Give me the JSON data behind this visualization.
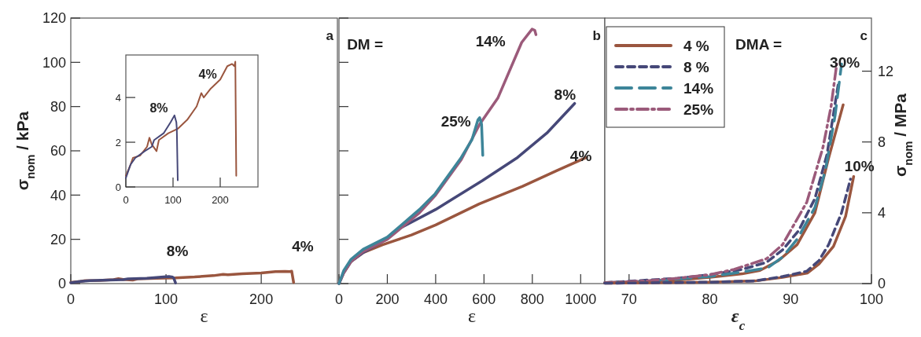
{
  "chart_data": [
    {
      "type": "line",
      "xlabel": "ε",
      "ylabel": "σ$_{nom}$  / kPa",
      "xlim": [
        0,
        280
      ],
      "ylim": [
        0,
        120
      ],
      "xticks": [
        0,
        100,
        200
      ],
      "yticks": [
        0,
        20,
        40,
        60,
        80,
        100,
        120
      ],
      "annotations": [
        "a",
        "8%",
        "4%"
      ],
      "series": [
        {
          "color": "#9a563f",
          "x": [
            0,
            10,
            15,
            30,
            45,
            50,
            55,
            65,
            70,
            90,
            110,
            130,
            150,
            160,
            165,
            180,
            200,
            215,
            225,
            230,
            232,
            234
          ],
          "values": [
            0.5,
            1.0,
            1.3,
            1.4,
            1.8,
            2.2,
            1.9,
            1.6,
            2.1,
            2.4,
            2.6,
            3.0,
            3.6,
            4.2,
            4.0,
            4.4,
            4.8,
            5.4,
            5.5,
            5.4,
            5.6,
            0.5
          ]
        },
        {
          "color": "#464878",
          "x": [
            0,
            10,
            20,
            40,
            55,
            60,
            80,
            95,
            103,
            107,
            108,
            110
          ],
          "values": [
            0.4,
            1.0,
            1.3,
            1.6,
            1.8,
            2.1,
            2.4,
            2.9,
            3.2,
            2.9,
            2.6,
            0.3
          ]
        }
      ]
    },
    {
      "type": "line",
      "xlim": [
        0,
        280
      ],
      "ylim": [
        0,
        5.9
      ],
      "xticks": [
        0,
        100,
        200
      ],
      "yticks": [
        0,
        2,
        4
      ],
      "annotations": [
        "8%",
        "4%"
      ],
      "series": [
        {
          "color": "#9a563f",
          "x": [
            0,
            10,
            15,
            30,
            45,
            50,
            55,
            65,
            70,
            90,
            110,
            130,
            150,
            160,
            165,
            180,
            200,
            215,
            225,
            230,
            232,
            234
          ],
          "values": [
            0.5,
            1.0,
            1.3,
            1.4,
            1.8,
            2.2,
            1.9,
            1.6,
            2.1,
            2.4,
            2.6,
            3.0,
            3.6,
            4.2,
            4.0,
            4.4,
            4.8,
            5.4,
            5.5,
            5.4,
            5.6,
            0.5
          ]
        },
        {
          "color": "#464878",
          "x": [
            0,
            10,
            20,
            40,
            55,
            60,
            80,
            95,
            103,
            107,
            108,
            110
          ],
          "values": [
            0.4,
            1.0,
            1.3,
            1.6,
            1.8,
            2.1,
            2.4,
            2.9,
            3.2,
            2.9,
            2.6,
            0.3
          ]
        }
      ]
    },
    {
      "type": "line",
      "xlabel": "ε",
      "xlim": [
        0,
        1100
      ],
      "ylim": [
        0,
        120
      ],
      "xticks": [
        0,
        200,
        400,
        600,
        800,
        1000
      ],
      "yticks": [
        0,
        20,
        40,
        60,
        80,
        100,
        120
      ],
      "tick_labels": "x",
      "annotations": [
        "b",
        "DM =",
        "14%",
        "8%",
        "25%",
        "4%"
      ],
      "series": [
        {
          "color": "#9a563f",
          "x": [
            0,
            20,
            50,
            100,
            180,
            300,
            400,
            580,
            760,
            900,
            1024
          ],
          "values": [
            0,
            5,
            10,
            14,
            17.5,
            22,
            26.5,
            36,
            44,
            51,
            57
          ]
        },
        {
          "color": "#464878",
          "x": [
            0,
            20,
            50,
            100,
            180,
            235,
            400,
            593,
            739,
            860,
            975
          ],
          "values": [
            0,
            5,
            10,
            14,
            19,
            24,
            33.5,
            46.5,
            57,
            68,
            81.4
          ]
        },
        {
          "color": "#9b5a7a",
          "x": [
            0,
            20,
            50,
            100,
            200,
            333,
            400,
            506,
            582,
            658,
            756,
            799,
            810,
            815
          ],
          "values": [
            0,
            5,
            10,
            14.5,
            20,
            32,
            40,
            56,
            72,
            84,
            109,
            115,
            114.5,
            112.5
          ]
        },
        {
          "color": "#3d8599",
          "x": [
            0,
            20,
            50,
            100,
            200,
            333,
            398,
            506,
            550,
            575,
            582,
            590,
            595
          ],
          "values": [
            0,
            6,
            11,
            15.5,
            21,
            33.5,
            40.6,
            57,
            65,
            74,
            75,
            72,
            58
          ]
        }
      ]
    },
    {
      "type": "line",
      "xlabel": "ε$_{c}$",
      "y2label": "σ$_{nom}$  / MPa",
      "xlim": [
        67,
        100
      ],
      "y2lim": [
        0,
        15
      ],
      "xticks": [
        70,
        80,
        90,
        100
      ],
      "y2ticks": [
        0,
        4,
        8,
        12
      ],
      "legend": "top left",
      "annotations": [
        "c",
        "DMA =",
        "30%",
        "10%"
      ],
      "series": [
        {
          "name": "4 %",
          "color": "#9a563f",
          "line_style": "solid",
          "axis": "y2",
          "x": [
            67,
            76,
            80,
            84,
            86.2,
            88.5,
            90.8,
            93,
            94.7,
            96.5
          ],
          "values": [
            0.03,
            0.2,
            0.35,
            0.55,
            0.74,
            1.3,
            2.2,
            4.0,
            7.1,
            10.1
          ]
        },
        {
          "name": "8 %",
          "color": "#464878",
          "line_style": "dashed",
          "axis": "y2",
          "x": [
            67,
            76,
            80,
            84,
            87,
            89,
            91,
            93,
            94.5,
            95.9
          ],
          "values": [
            0.05,
            0.3,
            0.5,
            0.8,
            1.2,
            1.9,
            3.0,
            4.8,
            7.3,
            11.3
          ]
        },
        {
          "name": "14%",
          "color": "#3d8599",
          "line_style": "longdash",
          "axis": "y2",
          "x": [
            67,
            72,
            76,
            80,
            84,
            87.2,
            89,
            90.8,
            93,
            94.3,
            95.5,
            96.3
          ],
          "values": [
            0.05,
            0.1,
            0.25,
            0.4,
            0.65,
            0.9,
            1.5,
            2.5,
            4.3,
            6.4,
            9.5,
            12.4
          ]
        },
        {
          "name": "25%",
          "color": "#9b5a7a",
          "line_style": "dashdot",
          "axis": "y2",
          "x": [
            67,
            72,
            76,
            80,
            83,
            87,
            89,
            90,
            92,
            94,
            95,
            95.7
          ],
          "values": [
            0.05,
            0.15,
            0.3,
            0.5,
            0.8,
            1.4,
            2.2,
            3.0,
            4.6,
            7.7,
            10,
            12.4
          ]
        },
        {
          "color": "#9a563f",
          "line_style": "solid",
          "axis": "y2",
          "x": [
            67,
            80,
            85.6,
            89,
            92.1,
            93.5,
            95.3,
            96.8,
            97.8
          ],
          "values": [
            0.02,
            0.08,
            0.15,
            0.35,
            0.6,
            1.1,
            2.1,
            3.8,
            6.05
          ]
        },
        {
          "color": "#464878",
          "line_style": "dashed",
          "axis": "y2",
          "x": [
            67,
            80,
            85.6,
            89,
            92,
            93.5,
            94.7,
            96.3,
            97.4
          ],
          "values": [
            0.02,
            0.08,
            0.15,
            0.4,
            0.7,
            1.3,
            2.2,
            4.0,
            5.9
          ]
        }
      ]
    }
  ]
}
